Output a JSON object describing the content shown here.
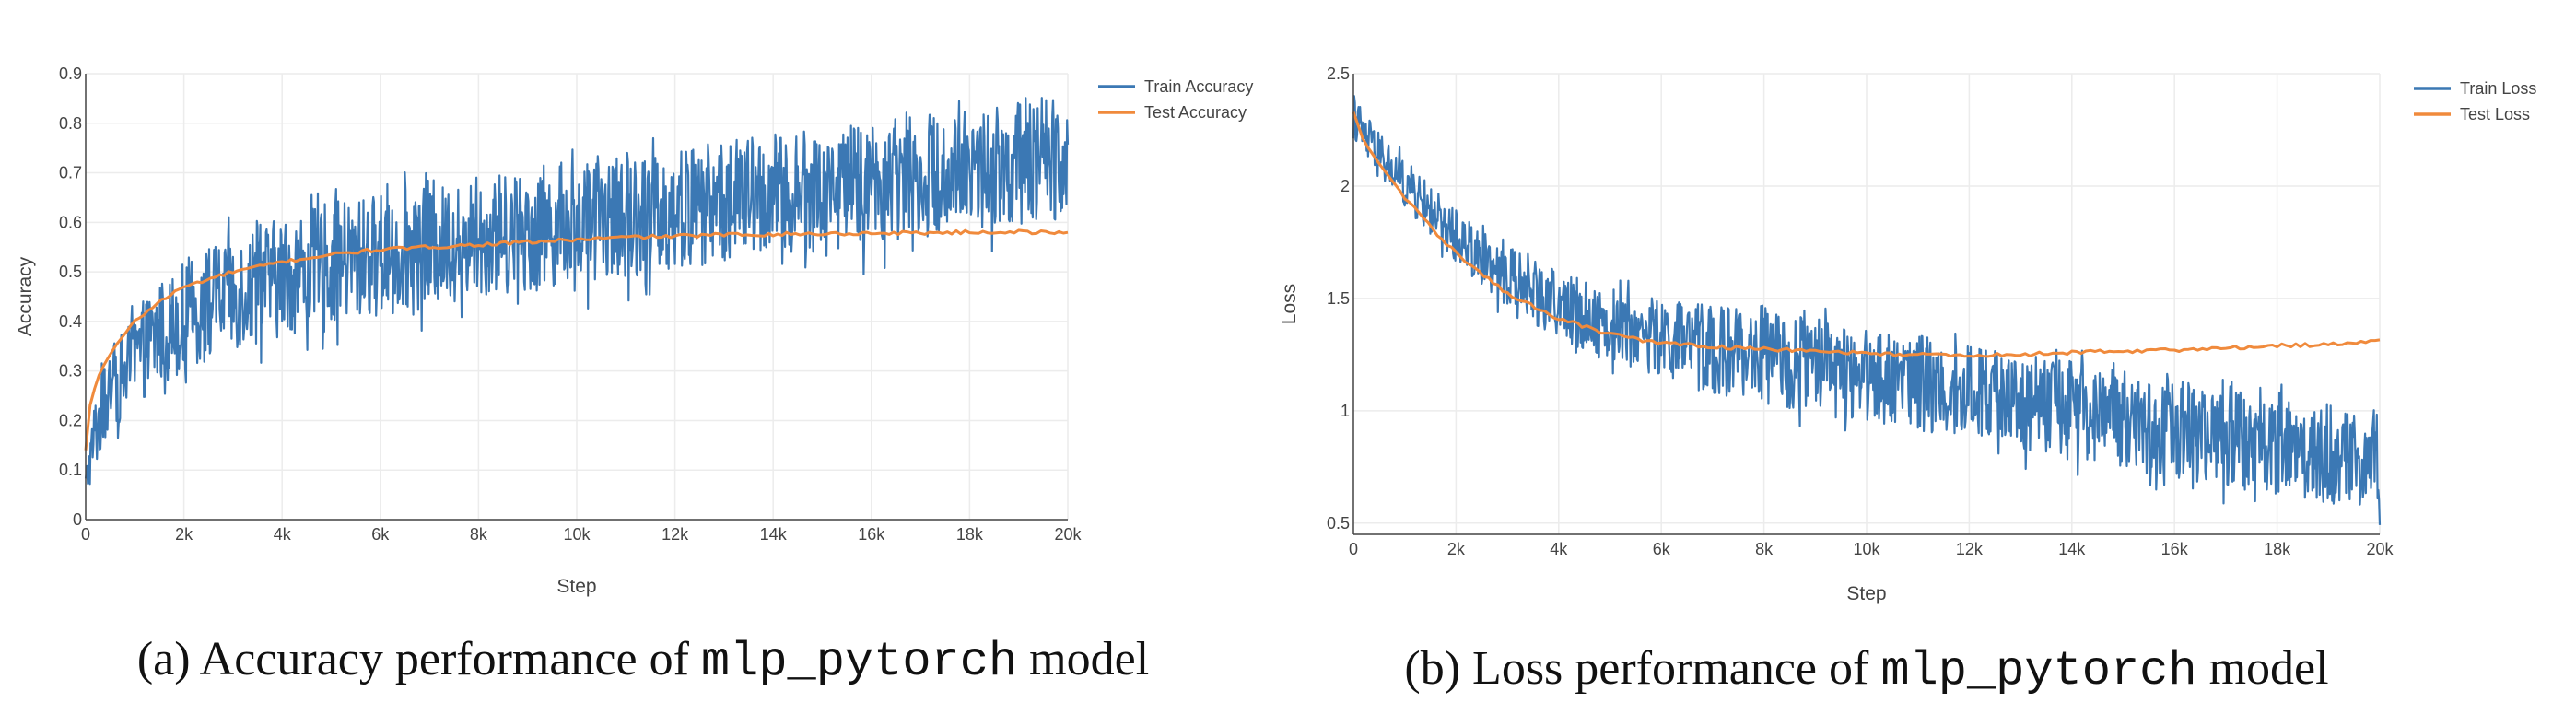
{
  "figure": {
    "panels": [
      {
        "caption": {
          "prefix": "(a) Accuracy performance of ",
          "code": "mlp_pytorch",
          "suffix": " model"
        }
      },
      {
        "caption": {
          "prefix": "(b) Loss performance of ",
          "code": "mlp_pytorch",
          "suffix": " model"
        }
      }
    ]
  },
  "chart_data": [
    {
      "type": "line",
      "title": "",
      "xlabel": "Step",
      "ylabel": "Accuracy",
      "xlim": [
        0,
        20000
      ],
      "ylim": [
        0,
        0.9
      ],
      "x_ticks": [
        0,
        2000,
        4000,
        6000,
        8000,
        10000,
        12000,
        14000,
        16000,
        18000,
        20000
      ],
      "x_tick_labels": [
        "0",
        "2k",
        "4k",
        "6k",
        "8k",
        "10k",
        "12k",
        "14k",
        "16k",
        "18k",
        "20k"
      ],
      "y_ticks": [
        0,
        0.1,
        0.2,
        0.3,
        0.4,
        0.5,
        0.6,
        0.7,
        0.8,
        0.9
      ],
      "y_tick_labels": [
        "0",
        "0.1",
        "0.2",
        "0.3",
        "0.4",
        "0.5",
        "0.6",
        "0.7",
        "0.8",
        "0.9"
      ],
      "grid": true,
      "legend_position": "top-right",
      "series": [
        {
          "name": "Train Accuracy",
          "color": "#3b78b4",
          "band": {
            "x": [
              0,
              200,
              500,
              1000,
              1500,
              2000,
              3000,
              4000,
              5000,
              6000,
              7000,
              8000,
              9000,
              10000,
              11000,
              12000,
              13000,
              14000,
              15000,
              16000,
              17000,
              18000,
              19000,
              20000
            ],
            "low": [
              0.04,
              0.1,
              0.17,
              0.23,
              0.27,
              0.3,
              0.34,
              0.37,
              0.39,
              0.41,
              0.43,
              0.45,
              0.46,
              0.48,
              0.49,
              0.5,
              0.52,
              0.53,
              0.54,
              0.56,
              0.57,
              0.58,
              0.59,
              0.61
            ],
            "high": [
              0.1,
              0.26,
              0.34,
              0.42,
              0.48,
              0.52,
              0.58,
              0.61,
              0.64,
              0.66,
              0.67,
              0.69,
              0.71,
              0.73,
              0.74,
              0.75,
              0.77,
              0.78,
              0.79,
              0.81,
              0.82,
              0.83,
              0.85,
              0.86
            ]
          }
        },
        {
          "name": "Test Accuracy",
          "color": "#f08a3c",
          "x": [
            0,
            100,
            300,
            600,
            1000,
            1500,
            2000,
            3000,
            4000,
            5000,
            6000,
            7000,
            8000,
            9000,
            10000,
            11000,
            12000,
            13000,
            14000,
            15000,
            16000,
            17000,
            18000,
            19000,
            20000
          ],
          "y": [
            0.14,
            0.24,
            0.3,
            0.35,
            0.4,
            0.44,
            0.47,
            0.5,
            0.52,
            0.535,
            0.545,
            0.55,
            0.555,
            0.56,
            0.565,
            0.57,
            0.572,
            0.575,
            0.576,
            0.577,
            0.578,
            0.579,
            0.58,
            0.581,
            0.578
          ]
        }
      ]
    },
    {
      "type": "line",
      "title": "",
      "xlabel": "Step",
      "ylabel": "Loss",
      "xlim": [
        0,
        20000
      ],
      "ylim": [
        0.45,
        2.5
      ],
      "x_ticks": [
        0,
        2000,
        4000,
        6000,
        8000,
        10000,
        12000,
        14000,
        16000,
        18000,
        20000
      ],
      "x_tick_labels": [
        "0",
        "2k",
        "4k",
        "6k",
        "8k",
        "10k",
        "12k",
        "14k",
        "16k",
        "18k",
        "20k"
      ],
      "y_ticks": [
        0.5,
        1,
        1.5,
        2,
        2.5
      ],
      "y_tick_labels": [
        "0.5",
        "1",
        "1.5",
        "2",
        "2.5"
      ],
      "grid": true,
      "legend_position": "top-right",
      "series": [
        {
          "name": "Train Loss",
          "color": "#3b78b4",
          "band": {
            "x": [
              0,
              200,
              500,
              1000,
              1500,
              2000,
              3000,
              4000,
              5000,
              6000,
              7000,
              8000,
              9000,
              10000,
              11000,
              12000,
              13000,
              14000,
              15000,
              16000,
              17000,
              18000,
              19000,
              20000
            ],
            "low": [
              2.22,
              2.12,
              2.03,
              1.9,
              1.78,
              1.66,
              1.46,
              1.32,
              1.22,
              1.14,
              1.08,
              1.03,
              0.99,
              0.95,
              0.91,
              0.87,
              0.83,
              0.79,
              0.75,
              0.71,
              0.67,
              0.63,
              0.59,
              0.55
            ],
            "high": [
              2.42,
              2.33,
              2.24,
              2.12,
              2.0,
              1.9,
              1.73,
              1.62,
              1.55,
              1.5,
              1.47,
              1.44,
              1.41,
              1.38,
              1.34,
              1.3,
              1.26,
              1.22,
              1.18,
              1.14,
              1.1,
              1.06,
              1.03,
              1.0
            ]
          }
        },
        {
          "name": "Test Loss",
          "color": "#f08a3c",
          "x": [
            0,
            200,
            500,
            1000,
            1500,
            2000,
            3000,
            4000,
            5000,
            6000,
            7000,
            8000,
            9000,
            10000,
            11000,
            12000,
            13000,
            14000,
            15000,
            16000,
            17000,
            18000,
            19000,
            20000
          ],
          "y": [
            2.33,
            2.2,
            2.1,
            1.95,
            1.82,
            1.7,
            1.52,
            1.41,
            1.34,
            1.3,
            1.285,
            1.275,
            1.265,
            1.255,
            1.25,
            1.245,
            1.25,
            1.26,
            1.265,
            1.27,
            1.28,
            1.29,
            1.295,
            1.31
          ]
        }
      ]
    }
  ]
}
